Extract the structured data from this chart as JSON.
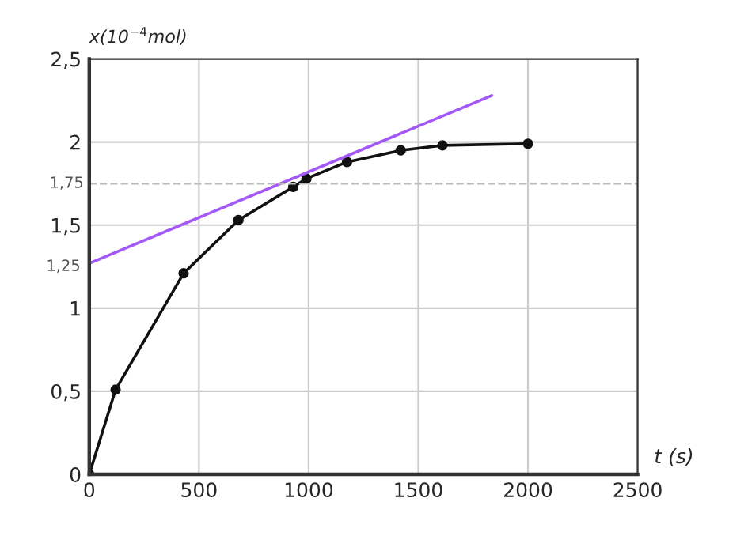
{
  "chart_data": {
    "type": "line",
    "xlabel": "t (s)",
    "ylabel": "x(10$^{−4}$mol)",
    "series": [
      {
        "color": "#111111",
        "marker": "circle",
        "x": [
          0,
          120,
          430,
          680,
          930,
          990,
          1175,
          1420,
          1610,
          2000
        ],
        "values": [
          0,
          0.51,
          1.21,
          1.53,
          1.73,
          1.78,
          1.88,
          1.95,
          1.98,
          1.99
        ]
      },
      {
        "color": "#a259f7",
        "marker": "none",
        "x": [
          0,
          1835
        ],
        "values": [
          1.27,
          2.28
        ]
      }
    ],
    "xlim": [
      0,
      2500
    ],
    "xticks": [
      0,
      500,
      1000,
      1500,
      2000,
      2500
    ],
    "ylim": [
      0,
      2.5
    ],
    "yticks": [
      {
        "value": 0,
        "label": "0"
      },
      {
        "value": 0.5,
        "label": "0,5"
      },
      {
        "value": 1,
        "label": "1"
      },
      {
        "value": 1.5,
        "label": "1,5"
      },
      {
        "value": 2,
        "label": "2"
      },
      {
        "value": 2.5,
        "label": "2,5"
      }
    ],
    "ref_lines": [
      {
        "axis": "y",
        "value": 1.75,
        "label": "1,75",
        "line_style": "dashed",
        "color": "#bbbbbb"
      }
    ],
    "annotations": [
      {
        "text": "1,25",
        "x": 0,
        "y": 1.25
      }
    ],
    "grid": true
  }
}
